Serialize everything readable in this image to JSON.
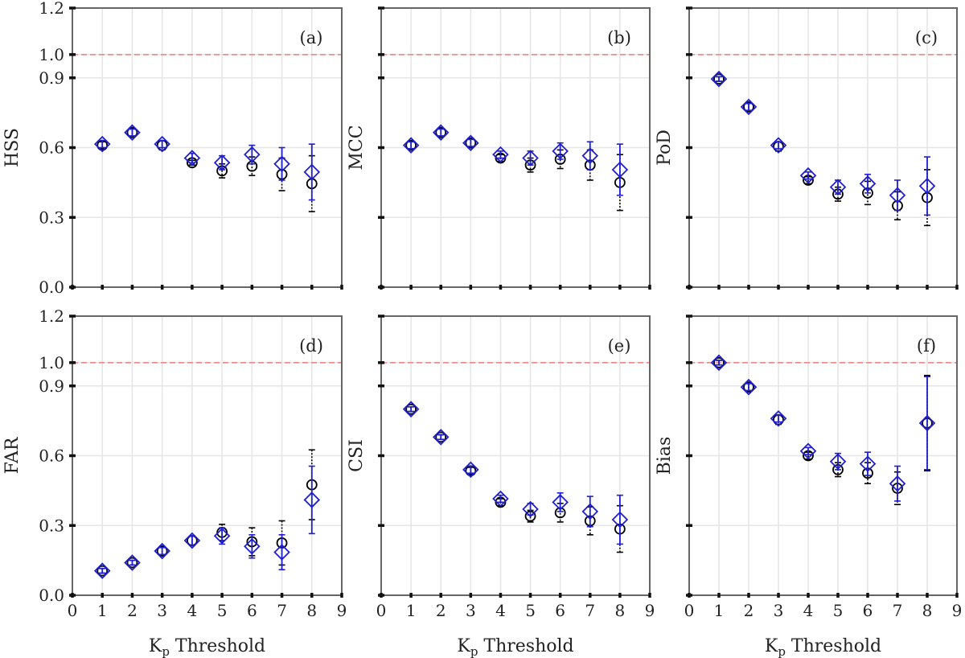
{
  "figure": {
    "xlabel_main": "K",
    "xlabel_sub": "p",
    "xlabel_rest": " Threshold",
    "x_ticks": [
      "0",
      "1",
      "2",
      "3",
      "4",
      "5",
      "6",
      "7",
      "8",
      "9"
    ],
    "y_ticks": [
      "0.0",
      "0.3",
      "0.6",
      "0.9",
      "1.0",
      "1.2"
    ]
  },
  "colors": {
    "diamond": "#1f1fd0",
    "circle": "#000000",
    "reference_line": "#f08080",
    "grid": "#e6e6e6",
    "frame": "#666666"
  },
  "chart_data": [
    {
      "type": "scatter",
      "panel": "(a)",
      "ylabel": "HSS",
      "xlim": [
        0,
        9
      ],
      "ylim": [
        0,
        1.2
      ],
      "yticks": [
        0,
        0.3,
        0.6,
        0.9,
        1.0,
        1.2
      ],
      "reference_y": 1.0,
      "grid": true,
      "x": [
        1,
        2,
        3,
        4,
        5,
        6,
        7,
        8
      ],
      "series": [
        {
          "marker": "circle",
          "values": [
            0.61,
            0.665,
            0.61,
            0.535,
            0.5,
            0.52,
            0.485,
            0.445
          ],
          "err_low": [
            0.015,
            0.015,
            0.02,
            0.01,
            0.03,
            0.04,
            0.07,
            0.12
          ],
          "err_high": [
            0.015,
            0.015,
            0.02,
            0.01,
            0.03,
            0.04,
            0.07,
            0.12
          ]
        },
        {
          "marker": "diamond",
          "values": [
            0.615,
            0.665,
            0.615,
            0.555,
            0.535,
            0.57,
            0.53,
            0.495
          ],
          "err_low": [
            0.015,
            0.015,
            0.015,
            0.02,
            0.03,
            0.04,
            0.07,
            0.12
          ],
          "err_high": [
            0.015,
            0.015,
            0.015,
            0.02,
            0.03,
            0.04,
            0.07,
            0.12
          ]
        }
      ]
    },
    {
      "type": "scatter",
      "panel": "(b)",
      "ylabel": "MCC",
      "xlim": [
        0,
        9
      ],
      "ylim": [
        0,
        1.2
      ],
      "yticks": [
        0,
        0.3,
        0.6,
        0.9,
        1.0,
        1.2
      ],
      "reference_y": 1.0,
      "grid": true,
      "x": [
        1,
        2,
        3,
        4,
        5,
        6,
        7,
        8
      ],
      "series": [
        {
          "marker": "circle",
          "values": [
            0.61,
            0.665,
            0.62,
            0.555,
            0.525,
            0.55,
            0.525,
            0.45
          ],
          "err_low": [
            0.015,
            0.015,
            0.02,
            0.015,
            0.03,
            0.04,
            0.065,
            0.12
          ],
          "err_high": [
            0.015,
            0.015,
            0.02,
            0.015,
            0.03,
            0.04,
            0.065,
            0.12
          ]
        },
        {
          "marker": "diamond",
          "values": [
            0.61,
            0.665,
            0.62,
            0.57,
            0.555,
            0.585,
            0.565,
            0.505
          ],
          "err_low": [
            0.015,
            0.015,
            0.015,
            0.015,
            0.03,
            0.035,
            0.06,
            0.11
          ],
          "err_high": [
            0.015,
            0.015,
            0.015,
            0.015,
            0.03,
            0.035,
            0.06,
            0.11
          ]
        }
      ]
    },
    {
      "type": "scatter",
      "panel": "(c)",
      "ylabel": "PoD",
      "xlim": [
        0,
        9
      ],
      "ylim": [
        0,
        1.2
      ],
      "yticks": [
        0,
        0.3,
        0.6,
        0.9,
        1.0,
        1.2
      ],
      "reference_y": 1.0,
      "grid": true,
      "x": [
        1,
        2,
        3,
        4,
        5,
        6,
        7,
        8
      ],
      "series": [
        {
          "marker": "circle",
          "values": [
            0.895,
            0.775,
            0.605,
            0.46,
            0.4,
            0.405,
            0.35,
            0.385
          ],
          "err_low": [
            0.01,
            0.015,
            0.02,
            0.015,
            0.03,
            0.05,
            0.06,
            0.12
          ],
          "err_high": [
            0.01,
            0.015,
            0.02,
            0.015,
            0.03,
            0.05,
            0.06,
            0.12
          ]
        },
        {
          "marker": "diamond",
          "values": [
            0.895,
            0.775,
            0.61,
            0.48,
            0.43,
            0.445,
            0.395,
            0.435
          ],
          "err_low": [
            0.01,
            0.015,
            0.015,
            0.015,
            0.03,
            0.04,
            0.065,
            0.125
          ],
          "err_high": [
            0.01,
            0.015,
            0.015,
            0.015,
            0.03,
            0.04,
            0.065,
            0.125
          ]
        }
      ]
    },
    {
      "type": "scatter",
      "panel": "(d)",
      "ylabel": "FAR",
      "xlim": [
        0,
        9
      ],
      "ylim": [
        0,
        1.2
      ],
      "yticks": [
        0,
        0.3,
        0.6,
        0.9,
        1.0,
        1.2
      ],
      "reference_y": 1.0,
      "grid": true,
      "x": [
        1,
        2,
        3,
        4,
        5,
        6,
        7,
        8
      ],
      "series": [
        {
          "marker": "circle",
          "values": [
            0.105,
            0.14,
            0.19,
            0.235,
            0.27,
            0.23,
            0.225,
            0.475
          ],
          "err_low": [
            0.01,
            0.01,
            0.015,
            0.02,
            0.035,
            0.06,
            0.095,
            0.15
          ],
          "err_high": [
            0.01,
            0.01,
            0.015,
            0.02,
            0.035,
            0.06,
            0.095,
            0.15
          ]
        },
        {
          "marker": "diamond",
          "values": [
            0.105,
            0.14,
            0.19,
            0.235,
            0.255,
            0.21,
            0.185,
            0.41
          ],
          "err_low": [
            0.01,
            0.01,
            0.015,
            0.02,
            0.035,
            0.05,
            0.075,
            0.145
          ],
          "err_high": [
            0.01,
            0.01,
            0.015,
            0.02,
            0.035,
            0.05,
            0.075,
            0.145
          ]
        }
      ]
    },
    {
      "type": "scatter",
      "panel": "(e)",
      "ylabel": "CSI",
      "xlim": [
        0,
        9
      ],
      "ylim": [
        0,
        1.2
      ],
      "yticks": [
        0,
        0.3,
        0.6,
        0.9,
        1.0,
        1.2
      ],
      "reference_y": 1.0,
      "grid": true,
      "x": [
        1,
        2,
        3,
        4,
        5,
        6,
        7,
        8
      ],
      "series": [
        {
          "marker": "circle",
          "values": [
            0.8,
            0.68,
            0.535,
            0.4,
            0.34,
            0.355,
            0.32,
            0.285
          ],
          "err_low": [
            0.01,
            0.01,
            0.015,
            0.015,
            0.025,
            0.04,
            0.06,
            0.1
          ],
          "err_high": [
            0.01,
            0.01,
            0.015,
            0.015,
            0.025,
            0.04,
            0.06,
            0.1
          ]
        },
        {
          "marker": "diamond",
          "values": [
            0.8,
            0.68,
            0.54,
            0.415,
            0.37,
            0.4,
            0.36,
            0.325
          ],
          "err_low": [
            0.01,
            0.01,
            0.015,
            0.015,
            0.025,
            0.04,
            0.065,
            0.105
          ],
          "err_high": [
            0.01,
            0.01,
            0.015,
            0.015,
            0.025,
            0.04,
            0.065,
            0.105
          ]
        }
      ]
    },
    {
      "type": "scatter",
      "panel": "(f)",
      "ylabel": "Bias",
      "xlim": [
        0,
        9
      ],
      "ylim": [
        0,
        1.2
      ],
      "yticks": [
        0,
        0.3,
        0.6,
        0.9,
        1.0,
        1.2
      ],
      "reference_y": 1.0,
      "grid": true,
      "x": [
        1,
        2,
        3,
        4,
        5,
        6,
        7,
        8
      ],
      "series": [
        {
          "marker": "circle",
          "values": [
            1.0,
            0.895,
            0.755,
            0.6,
            0.54,
            0.525,
            0.46,
            0.74
          ],
          "err_low": [
            0.01,
            0.015,
            0.02,
            0.015,
            0.03,
            0.045,
            0.07,
            0.205
          ],
          "err_high": [
            0.01,
            0.015,
            0.02,
            0.015,
            0.03,
            0.045,
            0.07,
            0.205
          ]
        },
        {
          "marker": "diamond",
          "values": [
            1.0,
            0.895,
            0.76,
            0.62,
            0.575,
            0.565,
            0.48,
            0.74
          ],
          "err_low": [
            0.01,
            0.015,
            0.015,
            0.015,
            0.035,
            0.05,
            0.075,
            0.2
          ],
          "err_high": [
            0.01,
            0.015,
            0.015,
            0.015,
            0.035,
            0.05,
            0.075,
            0.2
          ]
        }
      ]
    }
  ]
}
